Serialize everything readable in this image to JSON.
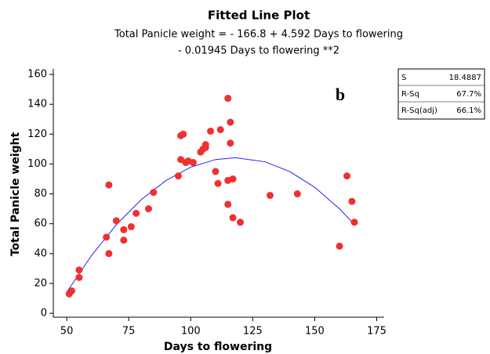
{
  "chart_data": {
    "type": "scatter",
    "title": "Fitted Line Plot",
    "subtitle": [
      "Total Panicle weight =  - 166.8 + 4.592 Days to flowering",
      "- 0.01945  Days to flowering **2"
    ],
    "x_label": "Days to flowering",
    "y_label": "Total Panicle weight",
    "annotation": "b",
    "xlim": [
      44.6,
      178
    ],
    "xticks": [
      50,
      75,
      100,
      125,
      150,
      175
    ],
    "ylim": [
      -2.6,
      163.7
    ],
    "yticks": [
      0,
      20,
      40,
      60,
      80,
      100,
      120,
      140,
      160
    ],
    "points": {
      "color": "#f03030",
      "x": [
        51,
        52,
        55,
        55,
        66,
        67,
        67,
        70,
        73,
        73,
        76,
        78,
        83,
        85,
        95,
        96,
        96,
        97,
        98,
        99,
        101,
        104,
        105,
        106,
        106,
        108,
        110,
        111,
        112,
        115,
        115,
        115,
        116,
        116,
        117,
        117,
        120,
        132,
        143,
        160,
        163,
        165,
        166
      ],
      "y": [
        13,
        15,
        29,
        24,
        51,
        86,
        40,
        62,
        56,
        49,
        58,
        67,
        70,
        81,
        92,
        103,
        119,
        120,
        101,
        102,
        101,
        108,
        110,
        113,
        111,
        122,
        95,
        87,
        123,
        144,
        89,
        73,
        128,
        114,
        90,
        64,
        61,
        79,
        80,
        45,
        92,
        75,
        61
      ]
    },
    "fit": {
      "color": "#2222ee",
      "x": [
        50,
        60,
        70,
        80,
        90,
        100,
        110,
        118,
        130,
        140,
        150,
        160,
        166
      ],
      "y": [
        14.2,
        38.7,
        59.3,
        76.1,
        88.9,
        97.9,
        103.0,
        104.2,
        101.5,
        94.9,
        84.4,
        70.0,
        59.5
      ]
    },
    "stats": [
      {
        "label": "S",
        "value": "18.4887"
      },
      {
        "label": "R-Sq",
        "value": "67.7%"
      },
      {
        "label": "R-Sq(adj)",
        "value": "66.1%"
      }
    ]
  }
}
